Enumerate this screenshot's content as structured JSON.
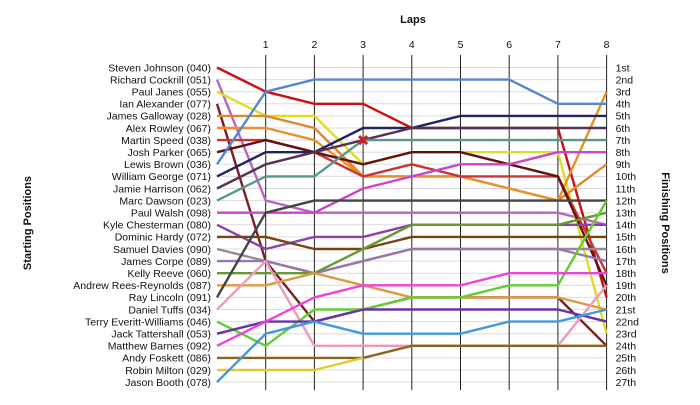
{
  "chart_data": {
    "type": "line",
    "title": "",
    "xlabel": "Laps",
    "ylabel_left": "Starting Positions",
    "ylabel_right": "Finishing Positions",
    "laps": [
      1,
      2,
      3,
      4,
      5,
      6,
      7,
      8
    ],
    "position_labels": [
      "1st",
      "2nd",
      "3rd",
      "4th",
      "5th",
      "6th",
      "7th",
      "8th",
      "9th",
      "10th",
      "11th",
      "12th",
      "13th",
      "14th",
      "15th",
      "16th",
      "17th",
      "18th",
      "19th",
      "20th",
      "21st",
      "22nd",
      "23rd",
      "24th",
      "25th",
      "26th",
      "27th"
    ],
    "position_range": [
      1,
      27
    ],
    "grid": true,
    "series": [
      {
        "name": "Steven Johnson (040)",
        "color": "#cc1111",
        "positions": [
          1,
          3,
          4,
          4,
          6,
          6,
          6,
          6,
          20
        ]
      },
      {
        "name": "Richard Cockrill (051)",
        "color": "#bb66bb",
        "positions": [
          2,
          12,
          13,
          13,
          13,
          13,
          13,
          13,
          14
        ]
      },
      {
        "name": "Paul Janes (055)",
        "color": "#dddd22",
        "positions": [
          3,
          5,
          5,
          9,
          8,
          8,
          8,
          8,
          23
        ]
      },
      {
        "name": "Ian Alexander (077)",
        "color": "#772222",
        "positions": [
          4,
          17,
          22,
          21,
          20,
          20,
          20,
          20,
          24
        ]
      },
      {
        "name": "James Galloway (028)",
        "color": "#dd8833",
        "positions": [
          5,
          5,
          6,
          10,
          10,
          10,
          11,
          12,
          9
        ]
      },
      {
        "name": "Alex Rowley (067)",
        "color": "#e89030",
        "positions": [
          6,
          6,
          7,
          10,
          10,
          10,
          11,
          12,
          3
        ]
      },
      {
        "name": "Martin Speed (038)",
        "color": "#cc3333",
        "positions": [
          7,
          7,
          8,
          10,
          9,
          10,
          10,
          10,
          18
        ]
      },
      {
        "name": "Josh Parker (065)",
        "color": "#661111",
        "positions": [
          8,
          7,
          8,
          9,
          8,
          8,
          9,
          10,
          19
        ]
      },
      {
        "name": "Lewis Brown (036)",
        "color": "#5588cc",
        "positions": [
          9,
          3,
          2,
          2,
          2,
          2,
          2,
          4,
          4
        ]
      },
      {
        "name": "William George (071)",
        "color": "#222266",
        "positions": [
          10,
          8,
          8,
          6,
          6,
          5,
          5,
          5,
          5
        ]
      },
      {
        "name": "Jamie Harrison (062)",
        "color": "#553355",
        "positions": [
          11,
          9,
          8,
          7,
          6,
          6,
          6,
          6,
          6
        ]
      },
      {
        "name": "Marc Dawson (023)",
        "color": "#559988",
        "positions": [
          12,
          10,
          10,
          7,
          7,
          7,
          7,
          7,
          7
        ]
      },
      {
        "name": "Paul Walsh (098)",
        "color": "#cc44cc",
        "positions": [
          13,
          13,
          13,
          11,
          10,
          9,
          9,
          8,
          8
        ]
      },
      {
        "name": "Kyle Chesterman (080)",
        "color": "#8844aa",
        "positions": [
          14,
          16,
          15,
          15,
          14,
          14,
          14,
          14,
          14
        ]
      },
      {
        "name": "Dominic Hardy (072)",
        "color": "#774411",
        "positions": [
          15,
          15,
          16,
          16,
          15,
          15,
          15,
          15,
          15
        ]
      },
      {
        "name": "Samuel Davies (090)",
        "color": "#998899",
        "positions": [
          16,
          17,
          18,
          17,
          16,
          16,
          16,
          16,
          16
        ]
      },
      {
        "name": "James Corpe (089)",
        "color": "#9977aa",
        "positions": [
          17,
          17,
          18,
          17,
          16,
          16,
          16,
          16,
          17
        ]
      },
      {
        "name": "Kelly Reeve (060)",
        "color": "#669933",
        "positions": [
          18,
          18,
          18,
          16,
          14,
          14,
          14,
          14,
          13
        ]
      },
      {
        "name": "Andrew Rees-Reynolds (087)",
        "color": "#dd9944",
        "positions": [
          19,
          19,
          18,
          19,
          20,
          20,
          20,
          20,
          21
        ]
      },
      {
        "name": "Ray Lincoln (091)",
        "color": "#444444",
        "positions": [
          20,
          13,
          12,
          12,
          12,
          12,
          12,
          12,
          12
        ]
      },
      {
        "name": "Daniel Tuffs (034)",
        "color": "#ee99bb",
        "positions": [
          21,
          17,
          24,
          24,
          24,
          24,
          24,
          24,
          19
        ]
      },
      {
        "name": "Terry Everitt-Williams (046)",
        "color": "#66cc33",
        "positions": [
          22,
          24,
          21,
          21,
          20,
          20,
          19,
          19,
          12
        ]
      },
      {
        "name": "Jack Tattershall (053)",
        "color": "#6633aa",
        "positions": [
          23,
          22,
          22,
          21,
          21,
          21,
          21,
          21,
          22
        ]
      },
      {
        "name": "Matthew Barnes (092)",
        "color": "#ee44dd",
        "positions": [
          24,
          22,
          20,
          19,
          19,
          19,
          18,
          18,
          18
        ]
      },
      {
        "name": "Andy Foskett (086)",
        "color": "#886622",
        "positions": [
          25,
          25,
          25,
          25,
          24,
          24,
          24,
          24,
          24
        ]
      },
      {
        "name": "Robin Milton (029)",
        "color": "#ddcc33",
        "positions": [
          26,
          26,
          26,
          25
        ]
      },
      {
        "name": "Jason Booth (078)",
        "color": "#4499dd",
        "positions": [
          27,
          23,
          22,
          23,
          23,
          23,
          22,
          22,
          21
        ]
      }
    ],
    "annotations": [
      {
        "type": "incident-marker",
        "lap": 3,
        "position": 7,
        "color": "#cc2222"
      }
    ]
  }
}
